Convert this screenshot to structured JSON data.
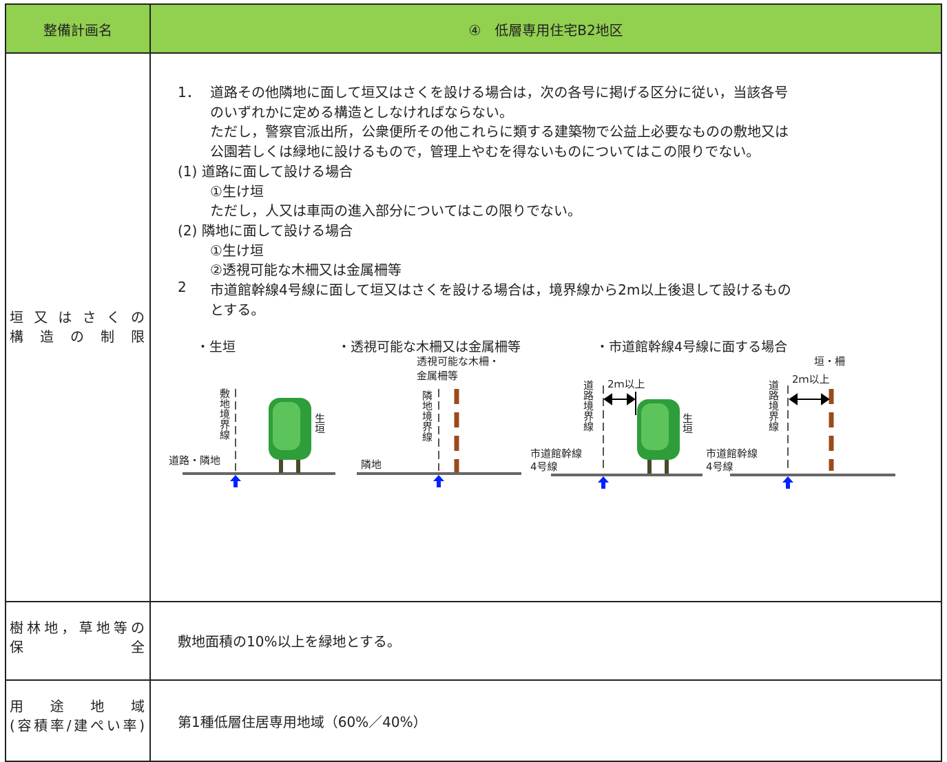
{
  "header": {
    "col1": "整備計画名",
    "col2": "④　低層専用住宅B2地区"
  },
  "rows": [
    {
      "label": [
        "垣又はさくの",
        "構造の制限"
      ],
      "body": [
        {
          "marker": "1．",
          "text": "道路その他隣地に面して垣又はさくを設ける場合は，次の各号に掲げる区分に従い，当該各号"
        },
        {
          "text": "のいずれかに定める構造としなければならない。"
        },
        {
          "text": "ただし，警察官派出所，公衆便所その他これらに類する建築物で公益上必要なものの敷地又は"
        },
        {
          "text": "公園若しくは緑地に設けるもので，管理上やむを得ないものについてはこの限りでない。"
        },
        {
          "head": "(1) 道路に面して設ける場合"
        },
        {
          "text": "①生け垣"
        },
        {
          "text": "ただし，人又は車両の進入部分についてはこの限りでない。"
        },
        {
          "head": "(2) 隣地に面して設ける場合"
        },
        {
          "text": "①生け垣"
        },
        {
          "text": "②透視可能な木柵又は金属柵等"
        },
        {
          "marker": "2",
          "text": "市道館幹線4号線に面して垣又はさくを設ける場合は，境界線から2m以上後退して設けるもの"
        },
        {
          "text": "とする。"
        }
      ],
      "figures": {
        "captions": [
          "・生垣",
          "・透視可能な木柵又は金属柵等",
          "・市道館幹線4号線に面する場合"
        ],
        "labels": [
          "敷地境界線",
          "道路・隣地",
          "生垣",
          "透視可能な木柵・",
          "金属柵等",
          "隣地境界線",
          "隣地",
          "道路境界線",
          "2ｍ以上",
          "生垣",
          "市道館幹線",
          "4号線",
          "垣・柵",
          "2ｍ以上",
          "道路境界線",
          "市道館幹線",
          "4号線"
        ]
      }
    },
    {
      "label": [
        "樹林地，草地等の",
        "保全"
      ],
      "body": "敷地面積の10%以上を緑地とする。"
    },
    {
      "label": [
        "用途地域",
        "(容積率/建ぺい率)"
      ],
      "body": "第1種低層住居専用地域（60%／40%）"
    }
  ]
}
